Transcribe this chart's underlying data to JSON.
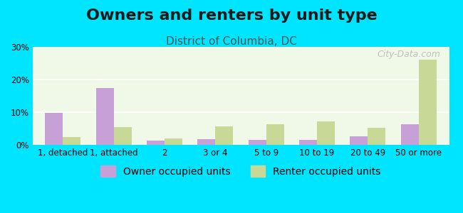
{
  "title": "Owners and renters by unit type",
  "subtitle": "District of Columbia, DC",
  "categories": [
    "1, detached",
    "1, attached",
    "2",
    "3 or 4",
    "5 to 9",
    "10 to 19",
    "20 to 49",
    "50 or more"
  ],
  "owner_values": [
    9.7,
    17.5,
    1.3,
    1.7,
    1.6,
    1.5,
    2.7,
    6.2
  ],
  "renter_values": [
    2.3,
    5.5,
    2.0,
    5.7,
    6.2,
    7.1,
    5.3,
    26.0
  ],
  "owner_color": "#c8a0d8",
  "renter_color": "#c8d896",
  "background_outer": "#00e5ff",
  "background_plot_top": "#f0f8e8",
  "background_plot_bottom": "#ffffff",
  "ylim": [
    0,
    30
  ],
  "yticks": [
    0,
    10,
    20,
    30
  ],
  "yticklabels": [
    "0%",
    "10%",
    "20%",
    "30%"
  ],
  "title_fontsize": 16,
  "subtitle_fontsize": 11,
  "legend_fontsize": 10,
  "watermark": "City-Data.com",
  "bar_width": 0.35
}
